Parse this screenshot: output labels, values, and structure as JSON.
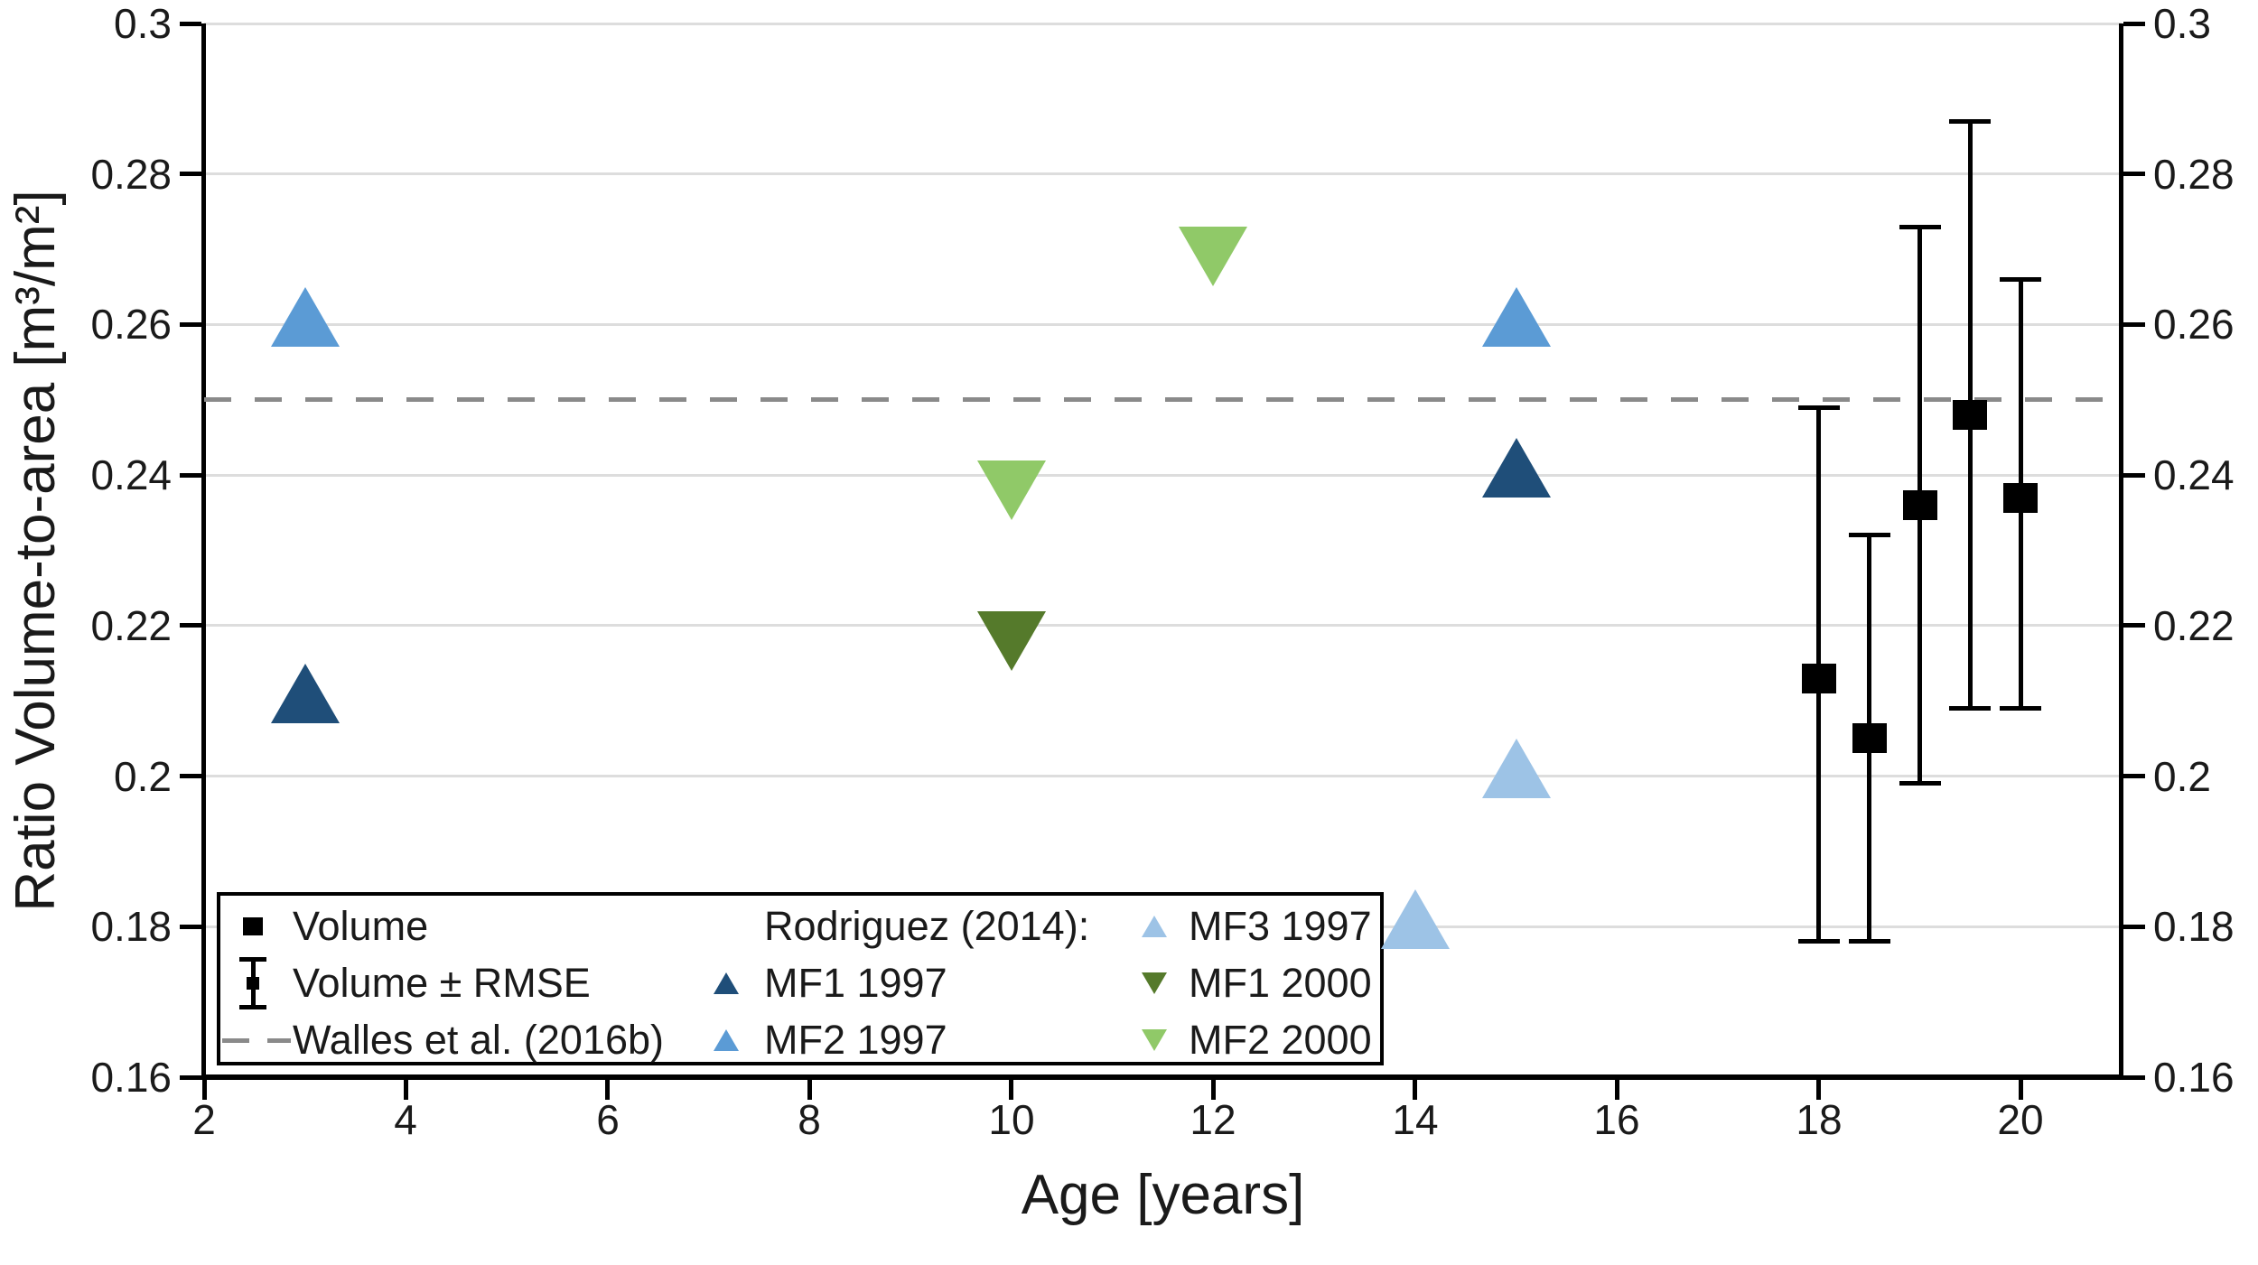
{
  "chart_data": {
    "type": "scatter",
    "xlabel": "Age [years]",
    "ylabel": "Ratio Volume-to-area [m³/m²]",
    "xlim": [
      2,
      21
    ],
    "ylim": [
      0.16,
      0.3
    ],
    "x_ticks": [
      2,
      4,
      6,
      8,
      10,
      12,
      14,
      16,
      18,
      20
    ],
    "y_ticks": [
      {
        "value": 0.3,
        "label": "0.3"
      },
      {
        "value": 0.28,
        "label": "0.28"
      },
      {
        "value": 0.26,
        "label": "0.26"
      },
      {
        "value": 0.24,
        "label": "0.24"
      },
      {
        "value": 0.22,
        "label": "0.22"
      },
      {
        "value": 0.2,
        "label": "0.2"
      },
      {
        "value": 0.18,
        "label": "0.18"
      },
      {
        "value": 0.16,
        "label": "0.16"
      }
    ],
    "grid": "horizontal",
    "reference_line": {
      "label": "Walles et al. (2016b)",
      "y": 0.25,
      "style": "dashed",
      "color": "#8a8a8a"
    },
    "series": [
      {
        "name": "Volume",
        "marker": "square",
        "color": "#000000",
        "points": [
          {
            "x": 18,
            "y": 0.213,
            "err_lo": 0.178,
            "err_hi": 0.249
          },
          {
            "x": 18.5,
            "y": 0.205,
            "err_lo": 0.178,
            "err_hi": 0.232
          },
          {
            "x": 19,
            "y": 0.236,
            "err_lo": 0.199,
            "err_hi": 0.273
          },
          {
            "x": 19.5,
            "y": 0.248,
            "err_lo": 0.209,
            "err_hi": 0.287
          },
          {
            "x": 20,
            "y": 0.237,
            "err_lo": 0.209,
            "err_hi": 0.266
          }
        ]
      },
      {
        "name": "MF1 1997",
        "marker": "triangle-up",
        "color": "#1f4e79",
        "points": [
          {
            "x": 3,
            "y": 0.211
          },
          {
            "x": 15,
            "y": 0.241
          }
        ]
      },
      {
        "name": "MF2 1997",
        "marker": "triangle-up",
        "color": "#5b9bd5",
        "points": [
          {
            "x": 3,
            "y": 0.261
          },
          {
            "x": 15,
            "y": 0.261
          }
        ]
      },
      {
        "name": "MF3 1997",
        "marker": "triangle-up",
        "color": "#9dc3e6",
        "points": [
          {
            "x": 14,
            "y": 0.181
          },
          {
            "x": 15,
            "y": 0.201
          }
        ]
      },
      {
        "name": "MF1 2000",
        "marker": "triangle-down",
        "color": "#557a2b",
        "points": [
          {
            "x": 10,
            "y": 0.218
          }
        ]
      },
      {
        "name": "MF2 2000",
        "marker": "triangle-down",
        "color": "#90c968",
        "points": [
          {
            "x": 10,
            "y": 0.238
          },
          {
            "x": 12,
            "y": 0.269
          }
        ]
      }
    ],
    "legend": {
      "columns": [
        {
          "items": [
            {
              "icon": "square",
              "color": "#000000",
              "label": "Volume"
            },
            {
              "icon": "errorbar",
              "color": "#000000",
              "label": "Volume ± RMSE"
            },
            {
              "icon": "dash",
              "color": "#8a8a8a",
              "label": "Walles et al. (2016b)"
            }
          ]
        },
        {
          "items": [
            {
              "icon": "none",
              "color": "",
              "label": "Rodriguez (2014):"
            },
            {
              "icon": "triangle-up",
              "color": "#1f4e79",
              "label": "MF1 1997"
            },
            {
              "icon": "triangle-up",
              "color": "#5b9bd5",
              "label": "MF2 1997"
            }
          ]
        },
        {
          "items": [
            {
              "icon": "triangle-up",
              "color": "#9dc3e6",
              "label": "MF3 1997"
            },
            {
              "icon": "triangle-down",
              "color": "#557a2b",
              "label": "MF1 2000"
            },
            {
              "icon": "triangle-down",
              "color": "#90c968",
              "label": "MF2 2000"
            }
          ]
        }
      ]
    },
    "colors": {
      "grid": "#dddddd",
      "spine": "#000000",
      "text": "#1a1a1a"
    }
  }
}
